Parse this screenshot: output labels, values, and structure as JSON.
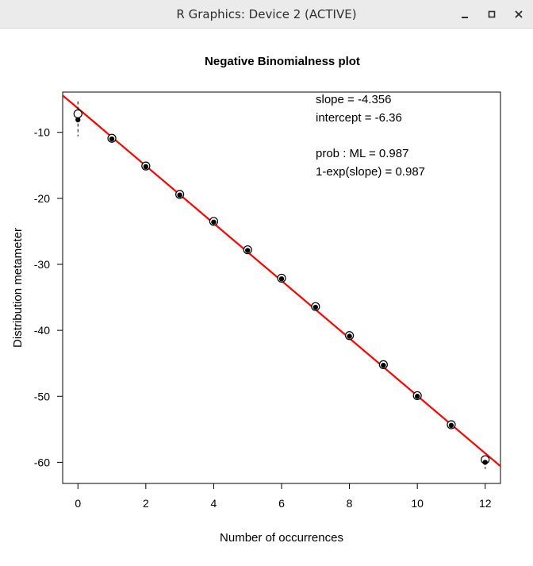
{
  "window": {
    "title": "R Graphics: Device 2 (ACTIVE)",
    "buttons": [
      {
        "name": "minimize-button",
        "icon": "minimize-icon"
      },
      {
        "name": "maximize-button",
        "icon": "maximize-icon"
      },
      {
        "name": "close-button",
        "icon": "close-icon"
      }
    ]
  },
  "chart_data": {
    "type": "scatter",
    "title": "Negative Binomialness plot",
    "xlabel": "Number of occurrences",
    "ylabel": "Distribution metameter",
    "xlim": [
      -0.45,
      12.45
    ],
    "ylim": [
      -63.2,
      -3.9
    ],
    "xticks": [
      0,
      2,
      4,
      6,
      8,
      10,
      12
    ],
    "yticks": [
      -10,
      -20,
      -30,
      -40,
      -50,
      -60
    ],
    "grid": false,
    "series": [
      {
        "marker": "open-circle",
        "x": [
          0,
          1,
          2,
          3,
          4,
          5,
          6,
          7,
          8,
          9,
          10,
          11,
          12
        ],
        "y": [
          -7.2,
          -10.9,
          -15.1,
          -19.4,
          -23.5,
          -27.8,
          -32.1,
          -36.4,
          -40.8,
          -45.2,
          -49.9,
          -54.3,
          -59.6
        ]
      },
      {
        "marker": "filled-dot",
        "x": [
          0,
          1,
          2,
          3,
          4,
          5,
          6,
          7,
          8,
          9,
          10,
          11,
          12
        ],
        "y": [
          -8.1,
          -11.0,
          -15.2,
          -19.5,
          -23.6,
          -27.9,
          -32.2,
          -36.5,
          -40.9,
          -45.3,
          -50.0,
          -54.4,
          -60.0
        ]
      }
    ],
    "error_bars": [
      {
        "x": 0,
        "low": -10.6,
        "high": -5.3
      },
      {
        "x": 1,
        "low": -11.6,
        "high": -10.4
      },
      {
        "x": 12,
        "low": -61.0,
        "high": -59.0
      }
    ],
    "fit_line": {
      "slope": -4.356,
      "intercept": -6.36,
      "color": "#ff0000"
    },
    "annotations": [
      "slope = -4.356",
      "intercept = -6.36",
      "prob : ML = 0.987",
      "1-exp(slope) = 0.987"
    ]
  }
}
